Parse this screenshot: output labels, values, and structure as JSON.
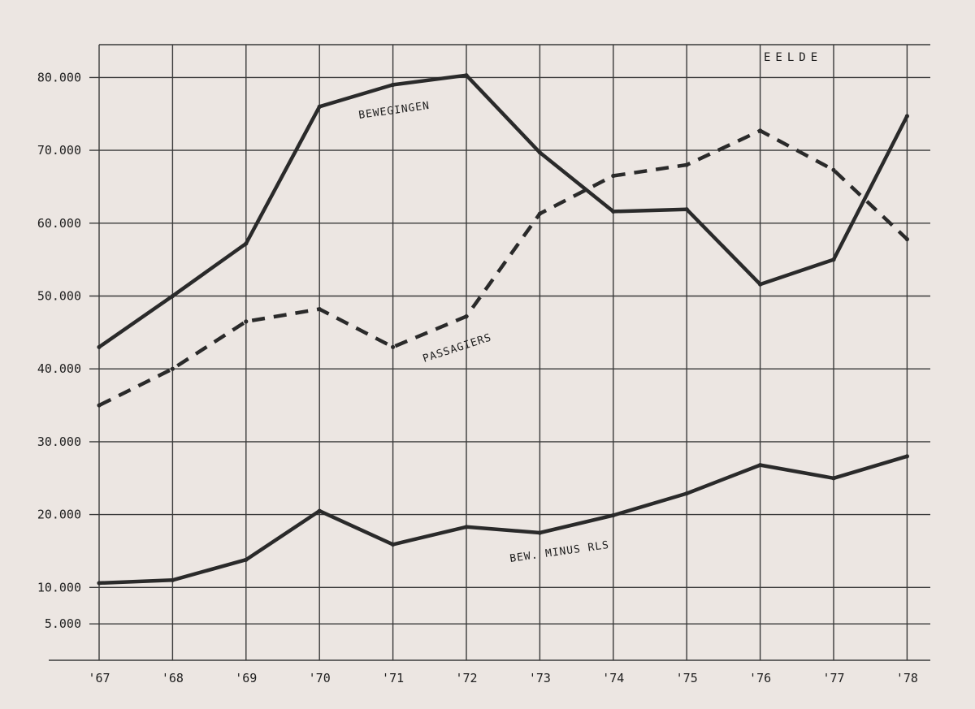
{
  "chart_data": {
    "type": "line",
    "title": "EELDE",
    "xlabel": "",
    "ylabel": "",
    "categories": [
      "'67",
      "'68",
      "'69",
      "'70",
      "'71",
      "'72",
      "'73",
      "'74",
      "'75",
      "'76",
      "'77",
      "'78"
    ],
    "yticks": [
      "80.000",
      "70.000",
      "60.000",
      "50.000",
      "40.000",
      "30.000",
      "20.000",
      "10.000",
      "5.000"
    ],
    "ytick_values": [
      80000,
      70000,
      60000,
      50000,
      40000,
      30000,
      20000,
      10000,
      5000
    ],
    "ylim": [
      0,
      85000
    ],
    "grid": true,
    "legend": "none",
    "series": [
      {
        "name": "BEWEGINGEN",
        "style": "solid",
        "color": "#2a2a2a",
        "values": [
          43000,
          50000,
          57200,
          76000,
          79000,
          80300,
          69700,
          61600,
          61900,
          51600,
          55000,
          74700
        ]
      },
      {
        "name": "PASSAGIERS",
        "style": "dashed",
        "color": "#2a2a2a",
        "values": [
          35000,
          40000,
          46500,
          48200,
          43000,
          47200,
          61300,
          66500,
          68000,
          72700,
          67300,
          57800
        ]
      },
      {
        "name": "BEW. MINUS RLS",
        "style": "solid",
        "color": "#2a2a2a",
        "values": [
          10600,
          11000,
          13800,
          20500,
          15900,
          18300,
          17500,
          19900,
          22900,
          26800,
          25000,
          28000
        ]
      }
    ]
  },
  "annotations": {
    "bewegingen": "BEWEGINGEN",
    "passagiers": "PASSAGIERS",
    "bew_minus": "BEW. MINUS RLS"
  }
}
